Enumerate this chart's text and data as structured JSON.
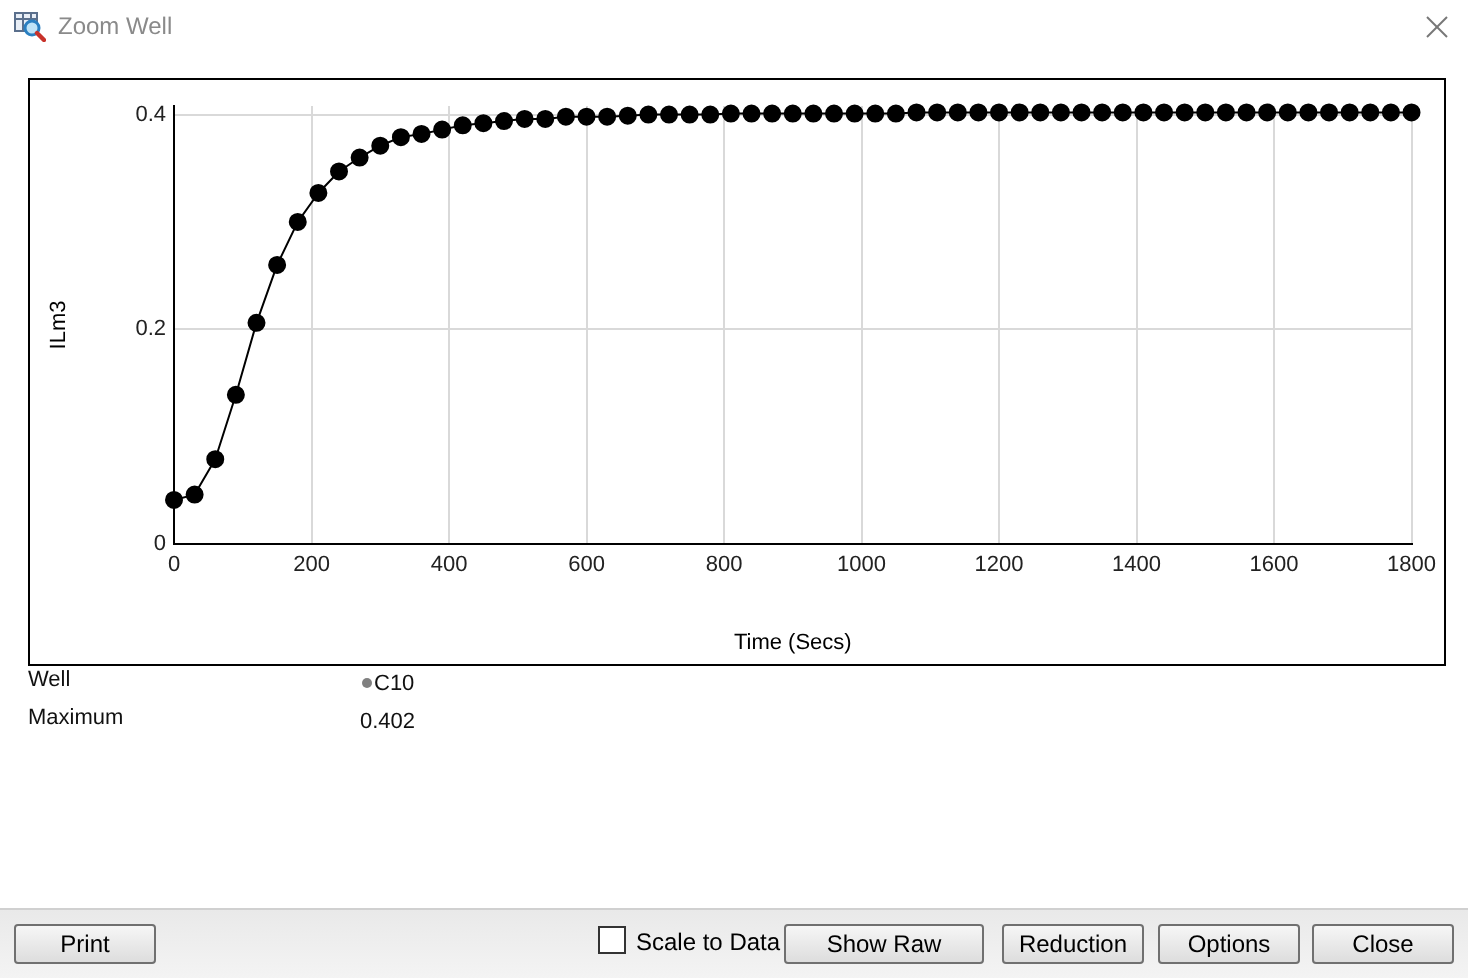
{
  "chart_data": {
    "type": "line",
    "title": "Zoom Well",
    "xlabel": "Time (Secs)",
    "ylabel": "ILm3",
    "x": [
      0,
      30,
      60,
      90,
      120,
      150,
      180,
      210,
      240,
      270,
      300,
      330,
      360,
      390,
      420,
      450,
      480,
      510,
      540,
      570,
      600,
      630,
      660,
      690,
      720,
      750,
      780,
      810,
      840,
      870,
      900,
      930,
      960,
      990,
      1020,
      1050,
      1080,
      1110,
      1140,
      1170,
      1200,
      1230,
      1260,
      1290,
      1320,
      1350,
      1380,
      1410,
      1440,
      1470,
      1500,
      1530,
      1560,
      1590,
      1620,
      1650,
      1680,
      1710,
      1740,
      1770,
      1800
    ],
    "values": [
      0.041,
      0.046,
      0.079,
      0.139,
      0.206,
      0.26,
      0.3,
      0.327,
      0.347,
      0.36,
      0.371,
      0.379,
      0.382,
      0.386,
      0.39,
      0.392,
      0.394,
      0.396,
      0.396,
      0.398,
      0.398,
      0.398,
      0.399,
      0.4,
      0.4,
      0.4,
      0.4,
      0.401,
      0.401,
      0.401,
      0.401,
      0.401,
      0.401,
      0.401,
      0.401,
      0.401,
      0.402,
      0.402,
      0.402,
      0.402,
      0.402,
      0.402,
      0.402,
      0.402,
      0.402,
      0.402,
      0.402,
      0.402,
      0.402,
      0.402,
      0.402,
      0.402,
      0.402,
      0.402,
      0.402,
      0.402,
      0.402,
      0.402,
      0.402,
      0.402,
      0.402
    ],
    "color": "#000000",
    "marker": "circle",
    "line_style": "solid",
    "grid": true,
    "xlim": [
      0,
      1800
    ],
    "xticks": [
      0,
      200,
      400,
      600,
      800,
      1000,
      1200,
      1400,
      1600,
      1800
    ],
    "ylim": [
      0,
      0.408
    ],
    "yticks": [
      0,
      0.2,
      0.4
    ],
    "annotations": [
      "Well",
      "C10",
      "Maximum",
      "0.402",
      "Print",
      "Scale to Data",
      "Show Raw",
      "Reduction",
      "Options",
      "Close"
    ]
  }
}
